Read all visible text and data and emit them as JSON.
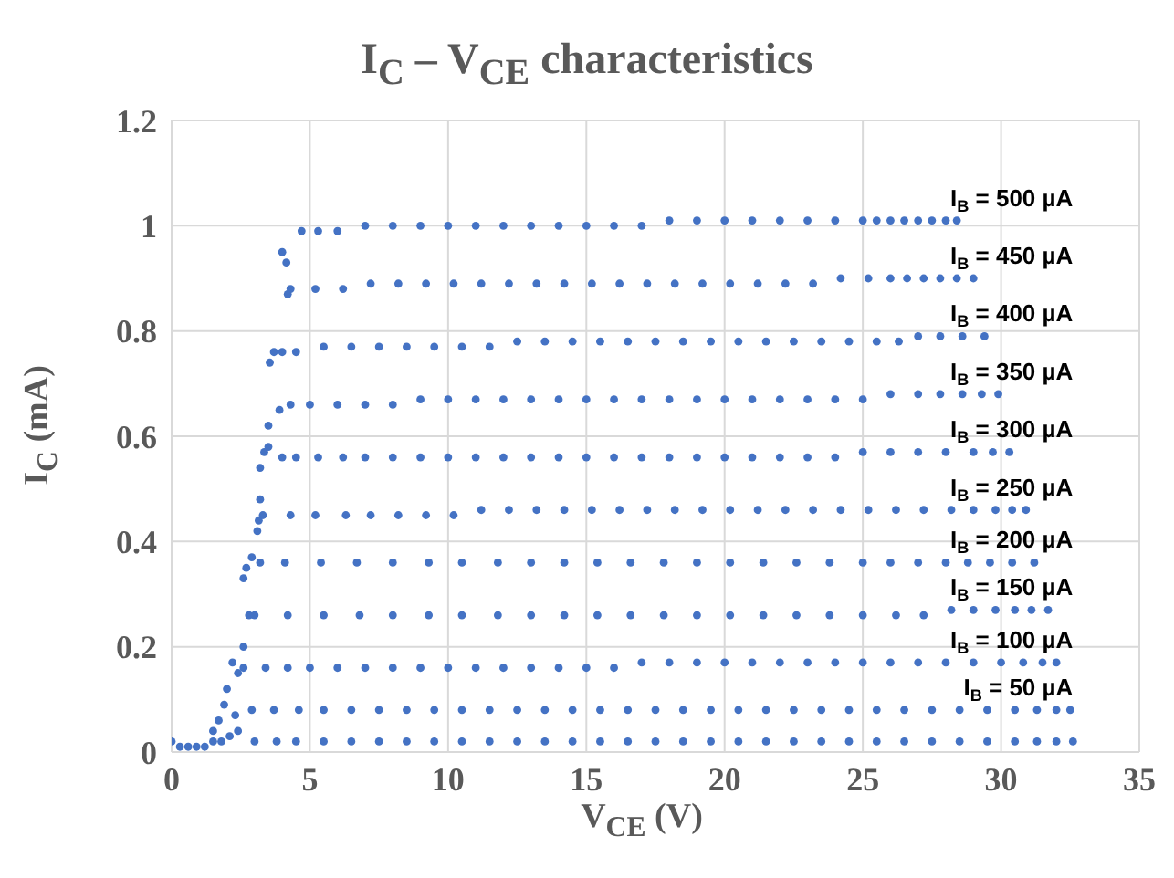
{
  "chart_data": {
    "type": "scatter",
    "title": "I$_{C}$ – V$_{CE}$ characteristics",
    "xlabel": "V$_{CE}$ (V)",
    "ylabel": "I$_{C}$ (mA)",
    "xlim": [
      0,
      35
    ],
    "ylim": [
      0,
      1.2
    ],
    "xticks": [
      0,
      5,
      10,
      15,
      20,
      25,
      30,
      35
    ],
    "yticks": [
      0,
      0.2,
      0.4,
      0.6,
      0.8,
      1,
      1.2
    ],
    "grid": true,
    "marker": "circle",
    "series": [
      {
        "color": "#4472c4",
        "x": [
          4.0,
          4.15,
          4.7,
          5.3,
          6,
          7,
          8,
          9,
          10,
          11,
          12,
          13,
          14,
          15,
          16,
          17,
          18,
          19,
          20,
          21,
          22,
          23,
          24,
          25,
          25.5,
          26,
          26.5,
          27,
          27.5,
          28,
          28.4
        ],
        "values": [
          0.95,
          0.93,
          0.99,
          0.99,
          0.99,
          1.0,
          1.0,
          1.0,
          1.0,
          1.0,
          1.0,
          1.0,
          1.0,
          1.0,
          1.0,
          1.0,
          1.01,
          1.01,
          1.01,
          1.01,
          1.01,
          1.01,
          1.01,
          1.01,
          1.01,
          1.01,
          1.01,
          1.01,
          1.01,
          1.01,
          1.01
        ]
      },
      {
        "color": "#4472c4",
        "x": [
          4.2,
          4.3,
          5.2,
          6.2,
          7.2,
          8.2,
          9.2,
          10.2,
          11.2,
          12.2,
          13.2,
          14.2,
          15.2,
          16.2,
          17.2,
          18.2,
          19.2,
          20.2,
          21.2,
          22.2,
          23.2,
          24.2,
          25.2,
          26,
          26.6,
          27.2,
          27.8,
          28.4,
          29.0
        ],
        "values": [
          0.87,
          0.88,
          0.88,
          0.88,
          0.89,
          0.89,
          0.89,
          0.89,
          0.89,
          0.89,
          0.89,
          0.89,
          0.89,
          0.89,
          0.89,
          0.89,
          0.89,
          0.89,
          0.89,
          0.89,
          0.89,
          0.9,
          0.9,
          0.9,
          0.9,
          0.9,
          0.9,
          0.9,
          0.9
        ]
      },
      {
        "color": "#4472c4",
        "x": [
          3.55,
          3.7,
          4.0,
          4.5,
          5.5,
          6.5,
          7.5,
          8.5,
          9.5,
          10.5,
          11.5,
          12.5,
          13.5,
          14.5,
          15.5,
          16.5,
          17.5,
          18.5,
          19.5,
          20.5,
          21.5,
          22.5,
          23.5,
          24.5,
          25.5,
          26.3,
          27,
          27.8,
          28.6,
          29.4
        ],
        "values": [
          0.74,
          0.76,
          0.76,
          0.76,
          0.77,
          0.77,
          0.77,
          0.77,
          0.77,
          0.77,
          0.77,
          0.78,
          0.78,
          0.78,
          0.78,
          0.78,
          0.78,
          0.78,
          0.78,
          0.78,
          0.78,
          0.78,
          0.78,
          0.78,
          0.78,
          0.78,
          0.79,
          0.79,
          0.79,
          0.79
        ]
      },
      {
        "color": "#4472c4",
        "x": [
          3.5,
          3.9,
          4.3,
          5.0,
          6,
          7,
          8,
          9,
          10,
          11,
          12,
          13,
          14,
          15,
          16,
          17,
          18,
          19,
          20,
          21,
          22,
          23,
          24,
          25,
          26,
          27,
          27.8,
          28.6,
          29.3,
          29.9
        ],
        "values": [
          0.62,
          0.65,
          0.66,
          0.66,
          0.66,
          0.66,
          0.66,
          0.67,
          0.67,
          0.67,
          0.67,
          0.67,
          0.67,
          0.67,
          0.67,
          0.67,
          0.67,
          0.67,
          0.67,
          0.67,
          0.67,
          0.67,
          0.67,
          0.67,
          0.68,
          0.68,
          0.68,
          0.68,
          0.68,
          0.68
        ]
      },
      {
        "color": "#4472c4",
        "x": [
          3.2,
          3.35,
          3.5,
          4.0,
          4.5,
          5.3,
          6.2,
          7,
          8,
          9,
          10,
          11,
          12,
          13,
          14,
          15,
          16,
          17,
          18,
          19,
          20,
          21,
          22,
          23,
          24,
          25,
          26,
          27,
          28,
          29,
          29.7,
          30.3
        ],
        "values": [
          0.54,
          0.57,
          0.58,
          0.56,
          0.56,
          0.56,
          0.56,
          0.56,
          0.56,
          0.56,
          0.56,
          0.56,
          0.56,
          0.56,
          0.56,
          0.56,
          0.56,
          0.56,
          0.56,
          0.56,
          0.56,
          0.56,
          0.56,
          0.56,
          0.56,
          0.57,
          0.57,
          0.57,
          0.57,
          0.57,
          0.57,
          0.57
        ]
      },
      {
        "color": "#4472c4",
        "x": [
          3.1,
          3.15,
          3.2,
          3.3,
          4.3,
          5.2,
          6.3,
          7.2,
          8.2,
          9.2,
          10.2,
          11.2,
          12.2,
          13.2,
          14.2,
          15.2,
          16.2,
          17.2,
          18.2,
          19.2,
          20.2,
          21.2,
          22.2,
          23.2,
          24.2,
          25.2,
          26.2,
          27.2,
          28.2,
          29,
          29.8,
          30.4,
          30.9
        ],
        "values": [
          0.42,
          0.44,
          0.48,
          0.45,
          0.45,
          0.45,
          0.45,
          0.45,
          0.45,
          0.45,
          0.45,
          0.46,
          0.46,
          0.46,
          0.46,
          0.46,
          0.46,
          0.46,
          0.46,
          0.46,
          0.46,
          0.46,
          0.46,
          0.46,
          0.46,
          0.46,
          0.46,
          0.46,
          0.46,
          0.46,
          0.46,
          0.46,
          0.46
        ]
      },
      {
        "color": "#4472c4",
        "x": [
          2.6,
          2.7,
          2.9,
          3.2,
          4.1,
          5.4,
          6.7,
          8,
          9.3,
          10.5,
          11.8,
          13,
          14.2,
          15.4,
          16.6,
          17.8,
          19,
          20.2,
          21.4,
          22.6,
          23.8,
          25,
          26,
          27,
          28,
          28.8,
          29.6,
          30.4,
          31.2
        ],
        "values": [
          0.33,
          0.35,
          0.37,
          0.36,
          0.36,
          0.36,
          0.36,
          0.36,
          0.36,
          0.36,
          0.36,
          0.36,
          0.36,
          0.36,
          0.36,
          0.36,
          0.36,
          0.36,
          0.36,
          0.36,
          0.36,
          0.36,
          0.36,
          0.36,
          0.36,
          0.36,
          0.36,
          0.36,
          0.36
        ]
      },
      {
        "color": "#4472c4",
        "x": [
          2.6,
          2.8,
          3.0,
          4.2,
          5.5,
          6.8,
          8,
          9.3,
          10.5,
          11.8,
          13,
          14.2,
          15.4,
          16.6,
          17.8,
          19,
          20.2,
          21.4,
          22.6,
          23.8,
          25,
          26.2,
          27.2,
          28.2,
          29,
          29.8,
          30.5,
          31.1,
          31.7
        ],
        "values": [
          0.2,
          0.26,
          0.26,
          0.26,
          0.26,
          0.26,
          0.26,
          0.26,
          0.26,
          0.26,
          0.26,
          0.26,
          0.26,
          0.26,
          0.26,
          0.26,
          0.26,
          0.26,
          0.26,
          0.26,
          0.26,
          0.26,
          0.26,
          0.27,
          0.27,
          0.27,
          0.27,
          0.27,
          0.27
        ]
      },
      {
        "color": "#4472c4",
        "x": [
          2.0,
          2.2,
          2.4,
          2.6,
          3.4,
          4.2,
          5.0,
          6,
          7,
          8,
          9,
          10,
          11,
          12,
          13,
          14,
          15,
          16,
          17,
          18,
          19,
          20,
          21,
          22,
          23,
          24,
          25,
          26,
          27,
          28,
          29,
          30,
          30.8,
          31.5,
          32.0
        ],
        "values": [
          0.12,
          0.17,
          0.15,
          0.16,
          0.16,
          0.16,
          0.16,
          0.16,
          0.16,
          0.16,
          0.16,
          0.16,
          0.16,
          0.16,
          0.16,
          0.16,
          0.16,
          0.16,
          0.17,
          0.17,
          0.17,
          0.17,
          0.17,
          0.17,
          0.17,
          0.17,
          0.17,
          0.17,
          0.17,
          0.17,
          0.17,
          0.17,
          0.17,
          0.17,
          0.17
        ]
      },
      {
        "color": "#4472c4",
        "x": [
          1.5,
          1.7,
          1.9,
          2.3,
          2.9,
          3.7,
          4.6,
          5.5,
          6.5,
          7.5,
          8.5,
          9.5,
          10.5,
          11.5,
          12.5,
          13.5,
          14.5,
          15.5,
          16.5,
          17.5,
          18.5,
          19.5,
          20.5,
          21.5,
          22.5,
          23.5,
          24.5,
          25.5,
          26.5,
          27.5,
          28.5,
          29.5,
          30.5,
          31.3,
          32.0,
          32.5
        ],
        "values": [
          0.04,
          0.06,
          0.09,
          0.07,
          0.08,
          0.08,
          0.08,
          0.08,
          0.08,
          0.08,
          0.08,
          0.08,
          0.08,
          0.08,
          0.08,
          0.08,
          0.08,
          0.08,
          0.08,
          0.08,
          0.08,
          0.08,
          0.08,
          0.08,
          0.08,
          0.08,
          0.08,
          0.08,
          0.08,
          0.08,
          0.08,
          0.08,
          0.08,
          0.08,
          0.08,
          0.08
        ]
      },
      {
        "color": "#4472c4",
        "x": [
          0,
          0.3,
          0.6,
          0.9,
          1.2,
          1.5,
          1.8,
          2.1,
          2.4,
          3.0,
          3.8,
          4.5,
          5.5,
          6.5,
          7.5,
          8.5,
          9.5,
          10.5,
          11.5,
          12.5,
          13.5,
          14.5,
          15.5,
          16.5,
          17.5,
          18.5,
          19.5,
          20.5,
          21.5,
          22.5,
          23.5,
          24.5,
          25.5,
          26.5,
          27.5,
          28.5,
          29.5,
          30.5,
          31.3,
          32,
          32.6
        ],
        "values": [
          0.02,
          0.01,
          0.01,
          0.01,
          0.01,
          0.02,
          0.02,
          0.03,
          0.04,
          0.02,
          0.02,
          0.02,
          0.02,
          0.02,
          0.02,
          0.02,
          0.02,
          0.02,
          0.02,
          0.02,
          0.02,
          0.02,
          0.02,
          0.02,
          0.02,
          0.02,
          0.02,
          0.02,
          0.02,
          0.02,
          0.02,
          0.02,
          0.02,
          0.02,
          0.02,
          0.02,
          0.02,
          0.02,
          0.02,
          0.02,
          0.02
        ]
      }
    ],
    "annotations": [
      "I$_{B}$ = 500 µA",
      "I$_{B}$ = 450 µA",
      "I$_{B}$ = 400 µA",
      "I$_{B}$ = 350 µA",
      "I$_{B}$ = 300 µA",
      "I$_{B}$ = 250 µA",
      "I$_{B}$ = 200 µA",
      "I$_{B}$ = 150 µA",
      "I$_{B}$ = 100 µA",
      "I$_{B}$ = 50 µA"
    ]
  }
}
